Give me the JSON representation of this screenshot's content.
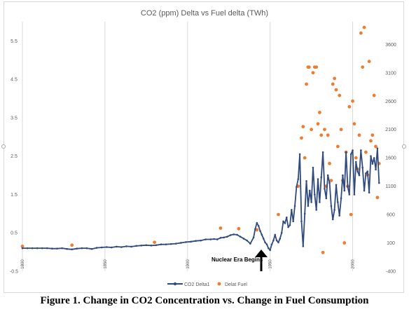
{
  "chart_data": {
    "type": "line",
    "title": "CO2 (ppm) Delta vs Fuel delta (TWh)",
    "xlabel": "",
    "ylabel": "",
    "x_ticks": [
      "1800",
      "1850",
      "1900",
      "1950",
      "2000"
    ],
    "x_range": [
      1800,
      2018
    ],
    "y_left": {
      "ticks": [
        "5.5",
        "4.5",
        "3.5",
        "2.5",
        "1.5",
        "0.5",
        "-0.5"
      ],
      "range": [
        -0.5,
        6
      ]
    },
    "y_right": {
      "ticks": [
        "3600",
        "3100",
        "2600",
        "2100",
        "1600",
        "1100",
        "600",
        "100",
        "-400"
      ],
      "range": [
        -400,
        4000
      ]
    },
    "grid": "vertical",
    "legend_position": "bottom",
    "series": [
      {
        "name": "CO2 Delta1",
        "axis": "left",
        "color": "#2f4a7e",
        "style": "line-markers",
        "points": [
          [
            1800,
            0.1
          ],
          [
            1803,
            0.1
          ],
          [
            1806,
            0.1
          ],
          [
            1809,
            0.1
          ],
          [
            1812,
            0.1
          ],
          [
            1815,
            0.1
          ],
          [
            1818,
            0.09
          ],
          [
            1821,
            0.09
          ],
          [
            1824,
            0.1
          ],
          [
            1827,
            0.08
          ],
          [
            1830,
            0.07
          ],
          [
            1833,
            0.09
          ],
          [
            1836,
            0.1
          ],
          [
            1839,
            0.1
          ],
          [
            1842,
            0.08
          ],
          [
            1845,
            0.11
          ],
          [
            1848,
            0.12
          ],
          [
            1851,
            0.13
          ],
          [
            1854,
            0.12
          ],
          [
            1857,
            0.14
          ],
          [
            1860,
            0.13
          ],
          [
            1863,
            0.15
          ],
          [
            1866,
            0.14
          ],
          [
            1869,
            0.16
          ],
          [
            1872,
            0.17
          ],
          [
            1875,
            0.18
          ],
          [
            1878,
            0.17
          ],
          [
            1881,
            0.18
          ],
          [
            1884,
            0.2
          ],
          [
            1887,
            0.2
          ],
          [
            1890,
            0.21
          ],
          [
            1893,
            0.22
          ],
          [
            1896,
            0.24
          ],
          [
            1899,
            0.26
          ],
          [
            1902,
            0.27
          ],
          [
            1905,
            0.29
          ],
          [
            1908,
            0.3
          ],
          [
            1911,
            0.33
          ],
          [
            1914,
            0.33
          ],
          [
            1916,
            0.34
          ],
          [
            1918,
            0.33
          ],
          [
            1920,
            0.37
          ],
          [
            1922,
            0.38
          ],
          [
            1924,
            0.4
          ],
          [
            1926,
            0.44
          ],
          [
            1928,
            0.46
          ],
          [
            1930,
            0.45
          ],
          [
            1932,
            0.4
          ],
          [
            1934,
            0.35
          ],
          [
            1936,
            0.3
          ],
          [
            1938,
            0.22
          ],
          [
            1940,
            0.38
          ],
          [
            1941,
            0.6
          ],
          [
            1942,
            0.76
          ],
          [
            1943,
            0.68
          ],
          [
            1944,
            0.55
          ],
          [
            1945,
            0.45
          ],
          [
            1946,
            0.35
          ],
          [
            1947,
            0.25
          ],
          [
            1948,
            0.2
          ],
          [
            1949,
            0.1
          ],
          [
            1950,
            0.05
          ],
          [
            1951,
            0.2
          ],
          [
            1952,
            0.3
          ],
          [
            1953,
            0.45
          ],
          [
            1954,
            0.3
          ],
          [
            1955,
            0.25
          ],
          [
            1956,
            0.35
          ],
          [
            1957,
            0.5
          ],
          [
            1958,
            0.8
          ],
          [
            1959,
            0.75
          ],
          [
            1960,
            0.9
          ],
          [
            1961,
            0.65
          ],
          [
            1962,
            0.7
          ],
          [
            1963,
            1.1
          ],
          [
            1964,
            0.8
          ],
          [
            1965,
            1.2
          ],
          [
            1966,
            1.7
          ],
          [
            1967,
            1.9
          ],
          [
            1968,
            2.55
          ],
          [
            1969,
            0.8
          ],
          [
            1970,
            0.15
          ],
          [
            1971,
            1.0
          ],
          [
            1972,
            1.85
          ],
          [
            1973,
            1.2
          ],
          [
            1974,
            1.6
          ],
          [
            1975,
            1.3
          ],
          [
            1976,
            2.2
          ],
          [
            1977,
            1.5
          ],
          [
            1978,
            1.1
          ],
          [
            1979,
            1.9
          ],
          [
            1980,
            1.3
          ],
          [
            1981,
            1.95
          ],
          [
            1982,
            2.6
          ],
          [
            1983,
            1.65
          ],
          [
            1984,
            1.4
          ],
          [
            1985,
            2.0
          ],
          [
            1986,
            1.8
          ],
          [
            1987,
            1.2
          ],
          [
            1988,
            0.85
          ],
          [
            1989,
            1.1
          ],
          [
            1990,
            1.75
          ],
          [
            1991,
            1.3
          ],
          [
            1992,
            0.95
          ],
          [
            1993,
            1.4
          ],
          [
            1994,
            2.0
          ],
          [
            1995,
            1.6
          ],
          [
            1996,
            2.6
          ],
          [
            1997,
            1.7
          ],
          [
            1998,
            1.5
          ],
          [
            1999,
            2.55
          ],
          [
            2000,
            2.65
          ],
          [
            2001,
            1.5
          ],
          [
            2002,
            2.35
          ],
          [
            2003,
            2.1
          ],
          [
            2004,
            2.0
          ],
          [
            2005,
            2.65
          ],
          [
            2006,
            2.2
          ],
          [
            2007,
            1.6
          ],
          [
            2008,
            2.05
          ],
          [
            2009,
            2.1
          ],
          [
            2010,
            1.55
          ],
          [
            2011,
            2.5
          ],
          [
            2012,
            2.3
          ],
          [
            2013,
            2.45
          ],
          [
            2014,
            2.15
          ],
          [
            2015,
            2.7
          ],
          [
            2016,
            1.8
          ]
        ]
      },
      {
        "name": "Delat Fuel",
        "axis": "right",
        "color": "#ed7d31",
        "style": "markers",
        "points": [
          [
            1800,
            40
          ],
          [
            1830,
            60
          ],
          [
            1880,
            110
          ],
          [
            1920,
            360
          ],
          [
            1931,
            350
          ],
          [
            1942,
            330
          ],
          [
            1955,
            600
          ],
          [
            1967,
            1100
          ],
          [
            1969,
            1950
          ],
          [
            1970,
            2150
          ],
          [
            1971,
            1600
          ],
          [
            1972,
            2900
          ],
          [
            1973,
            3200
          ],
          [
            1973.6,
            3200
          ],
          [
            1975,
            2100
          ],
          [
            1976,
            3100
          ],
          [
            1977,
            3200
          ],
          [
            1978,
            3200
          ],
          [
            1979,
            2200
          ],
          [
            1980,
            2400
          ],
          [
            1981,
            2000
          ],
          [
            1982,
            -70
          ],
          [
            1983,
            2100
          ],
          [
            1984,
            1100
          ],
          [
            1985,
            2000
          ],
          [
            1986,
            1500
          ],
          [
            1987,
            1200
          ],
          [
            1988,
            2900
          ],
          [
            1989,
            3000
          ],
          [
            1990,
            2800
          ],
          [
            1991,
            1800
          ],
          [
            1992,
            2700
          ],
          [
            1993,
            2100
          ],
          [
            1994,
            1200
          ],
          [
            1995,
            100
          ],
          [
            1996,
            1700
          ],
          [
            1997,
            1100
          ],
          [
            1998,
            2500
          ],
          [
            1999,
            600
          ],
          [
            2000,
            2600
          ],
          [
            2001,
            2200
          ],
          [
            2002,
            1600
          ],
          [
            2003,
            1400
          ],
          [
            2004,
            2000
          ],
          [
            2005,
            3800
          ],
          [
            2006,
            3200
          ],
          [
            2007,
            3900
          ],
          [
            2008,
            1700
          ],
          [
            2009,
            1300
          ],
          [
            2010,
            3300
          ],
          [
            2011,
            1900
          ],
          [
            2012,
            2000
          ],
          [
            2013,
            2700
          ],
          [
            2014,
            1800
          ],
          [
            2015,
            900
          ],
          [
            2016,
            1500
          ]
        ]
      }
    ],
    "annotation": {
      "text": "Nuclear Era Begins",
      "x": 1950
    }
  },
  "caption": "Figure 1. Change in CO2 Concentration vs. Change in Fuel Consumption"
}
